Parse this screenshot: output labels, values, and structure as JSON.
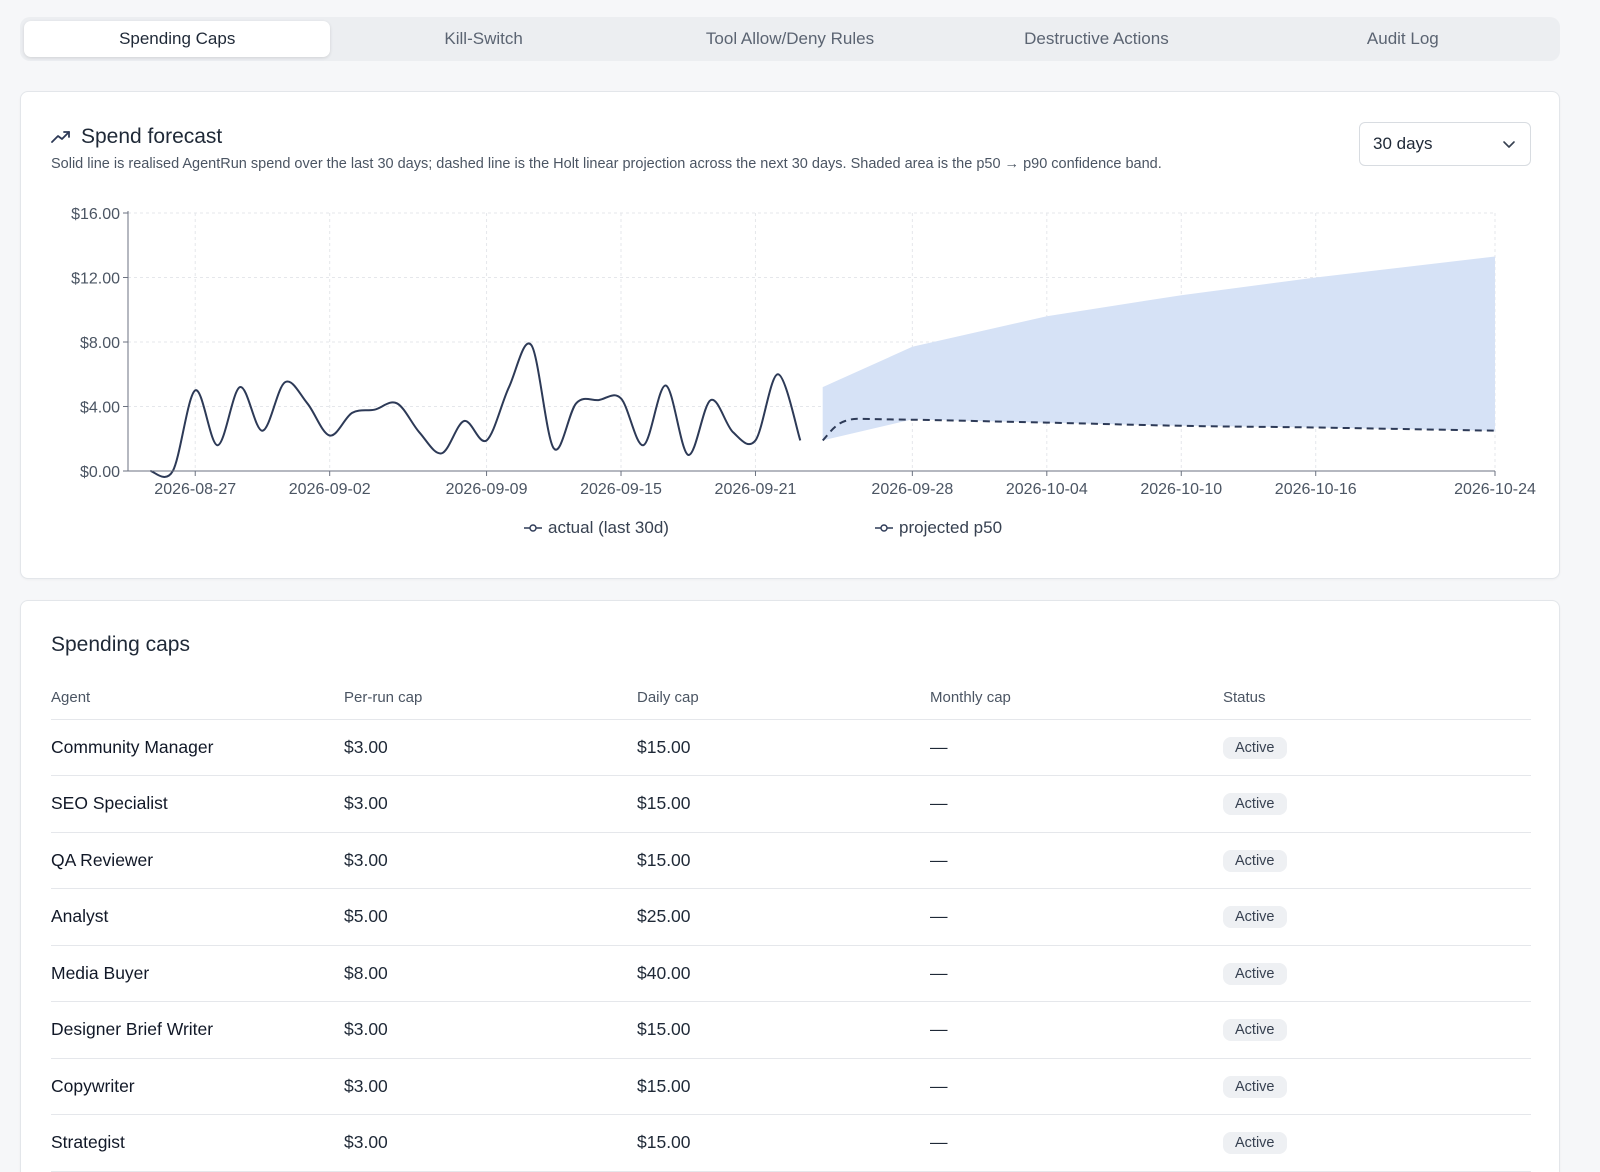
{
  "tabs": [
    {
      "label": "Spending Caps",
      "active": true
    },
    {
      "label": "Kill-Switch",
      "active": false
    },
    {
      "label": "Tool Allow/Deny Rules",
      "active": false
    },
    {
      "label": "Destructive Actions",
      "active": false
    },
    {
      "label": "Audit Log",
      "active": false
    }
  ],
  "forecast": {
    "title": "Spend forecast",
    "title_icon": "trending-up-icon",
    "description": "Solid line is realised AgentRun spend over the last 30 days; dashed line is the Holt linear projection across the next 30 days. Shaded area is the p50 → p90 confidence band.",
    "range_select": {
      "value": "30 days",
      "icon": "chevron-down-icon"
    }
  },
  "chart_data": {
    "type": "line",
    "title": "",
    "xlabel": "",
    "ylabel": "",
    "ylim": [
      0,
      16
    ],
    "y_ticks": [
      "$0.00",
      "$4.00",
      "$8.00",
      "$12.00",
      "$16.00"
    ],
    "x_ticks": [
      "2026-08-27",
      "2026-09-02",
      "2026-09-09",
      "2026-09-15",
      "2026-09-21",
      "2026-09-28",
      "2026-10-04",
      "2026-10-10",
      "2026-10-16",
      "2026-10-24"
    ],
    "grid": true,
    "legend_position": "bottom",
    "colors": {
      "actual": "#2d3a57",
      "projected": "#2d3a57",
      "band": "#d6e2f6"
    },
    "series": [
      {
        "name": "actual (last 30d)",
        "style": "solid",
        "x": [
          "2026-08-25",
          "2026-08-26",
          "2026-08-27",
          "2026-08-28",
          "2026-08-29",
          "2026-08-30",
          "2026-08-31",
          "2026-09-01",
          "2026-09-02",
          "2026-09-03",
          "2026-09-04",
          "2026-09-05",
          "2026-09-06",
          "2026-09-07",
          "2026-09-08",
          "2026-09-09",
          "2026-09-10",
          "2026-09-11",
          "2026-09-12",
          "2026-09-13",
          "2026-09-14",
          "2026-09-15",
          "2026-09-16",
          "2026-09-17",
          "2026-09-18",
          "2026-09-19",
          "2026-09-20",
          "2026-09-21",
          "2026-09-22",
          "2026-09-23"
        ],
        "values": [
          0.0,
          0.0,
          5.0,
          1.6,
          5.2,
          2.5,
          5.5,
          4.2,
          2.2,
          3.6,
          3.8,
          4.2,
          2.4,
          1.1,
          3.1,
          1.9,
          5.2,
          7.8,
          1.4,
          4.2,
          4.4,
          4.5,
          1.6,
          5.3,
          1.0,
          4.4,
          2.4,
          1.9,
          6.0,
          1.9
        ]
      },
      {
        "name": "projected p50",
        "style": "dashed",
        "x": [
          "2026-09-24",
          "2026-09-25",
          "2026-09-27",
          "2026-10-04",
          "2026-10-10",
          "2026-10-16",
          "2026-10-24"
        ],
        "values": [
          1.9,
          3.1,
          3.2,
          3.0,
          2.8,
          2.7,
          2.5
        ]
      }
    ],
    "band": {
      "name": "p50 → p90 confidence band",
      "x": [
        "2026-09-24",
        "2026-09-28",
        "2026-10-04",
        "2026-10-10",
        "2026-10-16",
        "2026-10-24"
      ],
      "upper": [
        5.2,
        7.7,
        9.6,
        10.9,
        12.0,
        13.3
      ],
      "lower": [
        1.9,
        3.2,
        3.0,
        2.8,
        2.7,
        2.5
      ]
    }
  },
  "caps": {
    "title": "Spending caps",
    "columns": [
      "Agent",
      "Per-run cap",
      "Daily cap",
      "Monthly cap",
      "Status"
    ],
    "rows": [
      {
        "agent": "Community Manager",
        "per_run": "$3.00",
        "daily": "$15.00",
        "monthly": "—",
        "status": "Active"
      },
      {
        "agent": "SEO Specialist",
        "per_run": "$3.00",
        "daily": "$15.00",
        "monthly": "—",
        "status": "Active"
      },
      {
        "agent": "QA Reviewer",
        "per_run": "$3.00",
        "daily": "$15.00",
        "monthly": "—",
        "status": "Active"
      },
      {
        "agent": "Analyst",
        "per_run": "$5.00",
        "daily": "$25.00",
        "monthly": "—",
        "status": "Active"
      },
      {
        "agent": "Media Buyer",
        "per_run": "$8.00",
        "daily": "$40.00",
        "monthly": "—",
        "status": "Active"
      },
      {
        "agent": "Designer Brief Writer",
        "per_run": "$3.00",
        "daily": "$15.00",
        "monthly": "—",
        "status": "Active"
      },
      {
        "agent": "Copywriter",
        "per_run": "$3.00",
        "daily": "$15.00",
        "monthly": "—",
        "status": "Active"
      },
      {
        "agent": "Strategist",
        "per_run": "$3.00",
        "daily": "$15.00",
        "monthly": "—",
        "status": "Active"
      }
    ]
  }
}
